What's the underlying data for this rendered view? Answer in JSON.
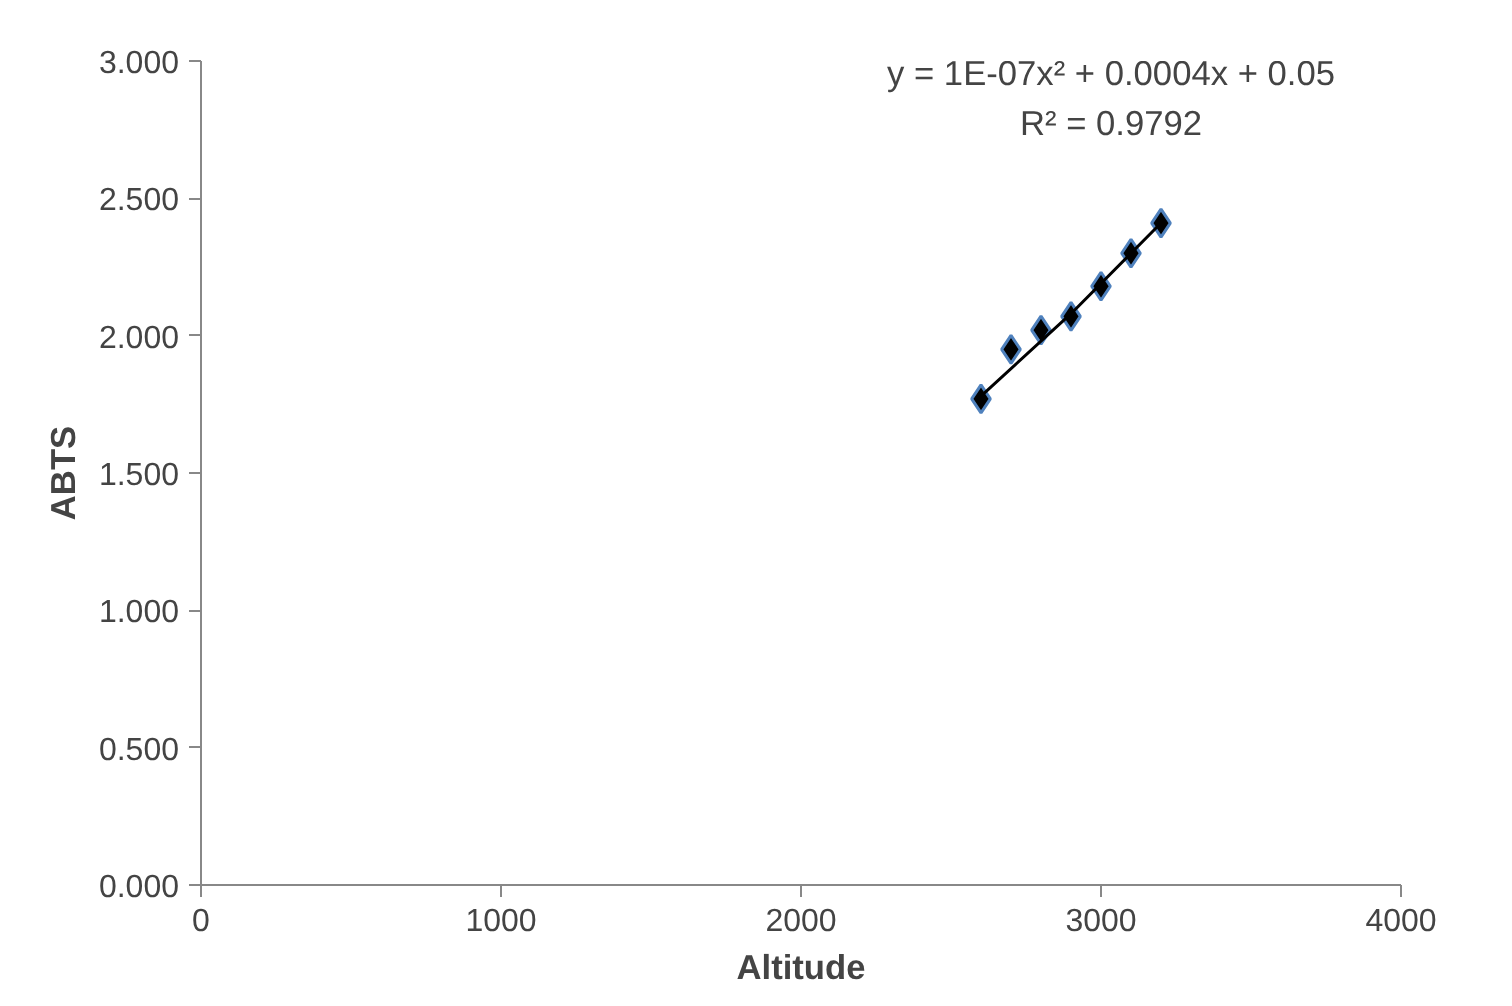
{
  "chart_data": {
    "type": "scatter",
    "xlabel": "Altitude",
    "ylabel": "ABTS",
    "xlim": [
      0,
      4000
    ],
    "xticks": [
      0,
      1000,
      2000,
      3000,
      4000
    ],
    "ylim": [
      0,
      3
    ],
    "yticks": [
      {
        "value": 0,
        "label": "0.000"
      },
      {
        "value": 0.5,
        "label": "0.500"
      },
      {
        "value": 1,
        "label": "1.000"
      },
      {
        "value": 1.5,
        "label": "1.500"
      },
      {
        "value": 2,
        "label": "2.000"
      },
      {
        "value": 2.5,
        "label": "2.500"
      },
      {
        "value": 3,
        "label": "3.000"
      }
    ],
    "grid": false,
    "series": [
      {
        "color": "#000000",
        "marker": "diamond",
        "x": [
          2600,
          2700,
          2800,
          2900,
          3000,
          3100,
          3200
        ],
        "values": [
          1.77,
          1.95,
          2.02,
          2.07,
          2.18,
          2.3,
          2.41
        ]
      },
      {
        "type": "line",
        "color": "#000000",
        "x": [
          2600,
          2900,
          3200
        ],
        "values": [
          1.78,
          2.08,
          2.41
        ]
      }
    ],
    "annotations": [
      "y = 1E-07x² + 0.0004x + 0.05",
      "R² = 0.9792"
    ]
  }
}
